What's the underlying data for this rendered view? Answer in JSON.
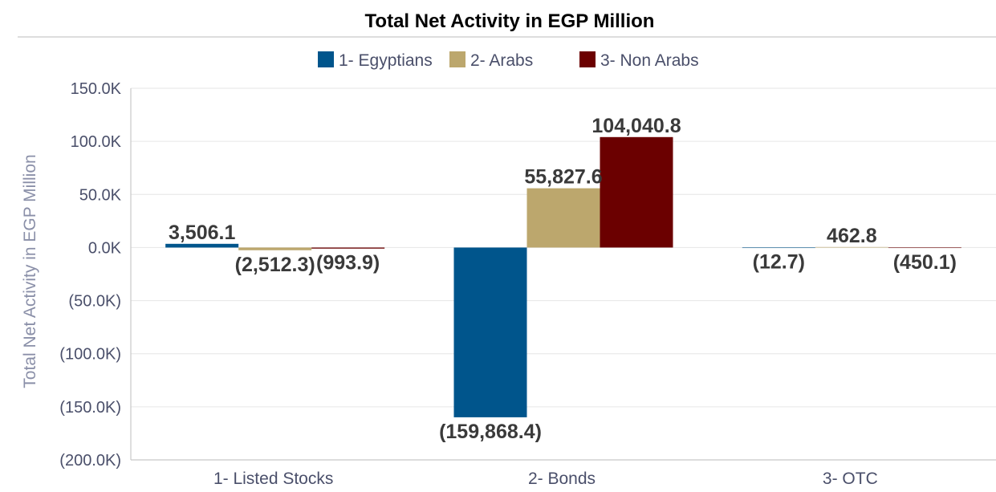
{
  "chart_data": {
    "type": "bar",
    "title": "Total Net Activity in EGP Million",
    "ylabel": "Total Net Activity in EGP Million",
    "xlabel": "",
    "categories": [
      "1- Listed Stocks",
      "2- Bonds",
      "3- OTC"
    ],
    "series": [
      {
        "name": "1- Egyptians",
        "color": "#00558c",
        "values": [
          3506.1,
          -159868.4,
          -12.7
        ],
        "labels": [
          "3,506.1",
          "(159,868.4)",
          "(12.7)"
        ]
      },
      {
        "name": "2- Arabs",
        "color": "#bca76d",
        "values": [
          -2512.3,
          55827.6,
          462.8
        ],
        "labels": [
          "(2,512.3)",
          "55,827.6",
          "462.8"
        ]
      },
      {
        "name": "3- Non Arabs",
        "color": "#6b0000",
        "values": [
          -993.9,
          104040.8,
          -450.1
        ],
        "labels": [
          "(993.9)",
          "104,040.8",
          "(450.1)"
        ]
      }
    ],
    "ylim": [
      -200000,
      150000
    ],
    "yticks": [
      150000,
      100000,
      50000,
      0,
      -50000,
      -100000,
      -150000,
      -200000
    ],
    "ytick_labels": [
      "150.0K",
      "100.0K",
      "50.0K",
      "0.0K",
      "(50.0K)",
      "(100.0K)",
      "(150.0K)",
      "(200.0K)"
    ],
    "grid": true,
    "legend_position": "top-center"
  }
}
